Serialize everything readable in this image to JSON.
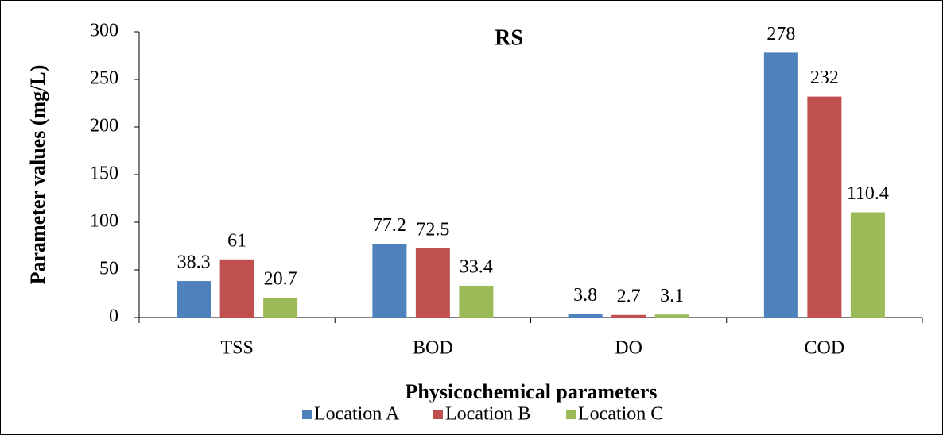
{
  "chart_data": {
    "type": "bar",
    "title": "RS",
    "x_label": "Physicochemical parameters",
    "y_label": "Parameter values (mg/L)",
    "categories": [
      "TSS",
      "BOD",
      "DO",
      "COD"
    ],
    "series": [
      {
        "name": "Location A",
        "color": "#4f81bd",
        "values": [
          38.3,
          77.2,
          3.8,
          278
        ]
      },
      {
        "name": "Location B",
        "color": "#c0504d",
        "values": [
          61,
          72.5,
          2.7,
          232
        ]
      },
      {
        "name": "Location C",
        "color": "#9bbb59",
        "values": [
          20.7,
          33.4,
          3.1,
          110.4
        ]
      }
    ],
    "ylim": [
      0,
      300
    ],
    "yticks": [
      0,
      50,
      100,
      150,
      200,
      250,
      300
    ],
    "grid": false,
    "legend": "bottom"
  }
}
